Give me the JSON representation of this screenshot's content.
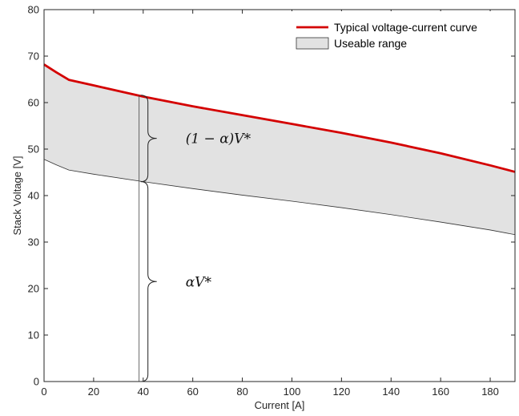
{
  "chart_data": {
    "type": "line",
    "title": "",
    "xlabel": "Current [A]",
    "ylabel": "Stack Voltage [V]",
    "xlim": [
      0,
      190
    ],
    "ylim": [
      0,
      80
    ],
    "xticks": [
      0,
      20,
      40,
      60,
      80,
      100,
      120,
      140,
      160,
      180
    ],
    "yticks": [
      0,
      10,
      20,
      30,
      40,
      50,
      60,
      70,
      80
    ],
    "grid": false,
    "legend_position": "top-right",
    "colors": {
      "curve": "#d40000",
      "range_fill": "#e2e2e2",
      "range_edge": "#333333"
    },
    "series": [
      {
        "name": "Typical voltage-current curve",
        "style": "line",
        "x": [
          0,
          5,
          10,
          20,
          40,
          60,
          80,
          100,
          120,
          140,
          160,
          180,
          190
        ],
        "y": [
          68.2,
          66.5,
          64.9,
          63.7,
          61.3,
          59.2,
          57.3,
          55.4,
          53.5,
          51.4,
          49.1,
          46.5,
          45.1
        ]
      },
      {
        "name": "Useable range",
        "style": "band",
        "x": [
          0,
          5,
          10,
          20,
          40,
          60,
          80,
          100,
          120,
          140,
          160,
          180,
          190
        ],
        "y_lower": [
          47.8,
          46.6,
          45.5,
          44.6,
          43.0,
          41.5,
          40.1,
          38.8,
          37.4,
          35.9,
          34.3,
          32.6,
          31.6
        ]
      }
    ],
    "annotations": [
      {
        "label": "(1 − α)V*",
        "x": 39,
        "y_from": 43.0,
        "y_to": 61.6
      },
      {
        "label": "αV*",
        "x": 39,
        "y_from": 0,
        "y_to": 43.0
      }
    ]
  }
}
